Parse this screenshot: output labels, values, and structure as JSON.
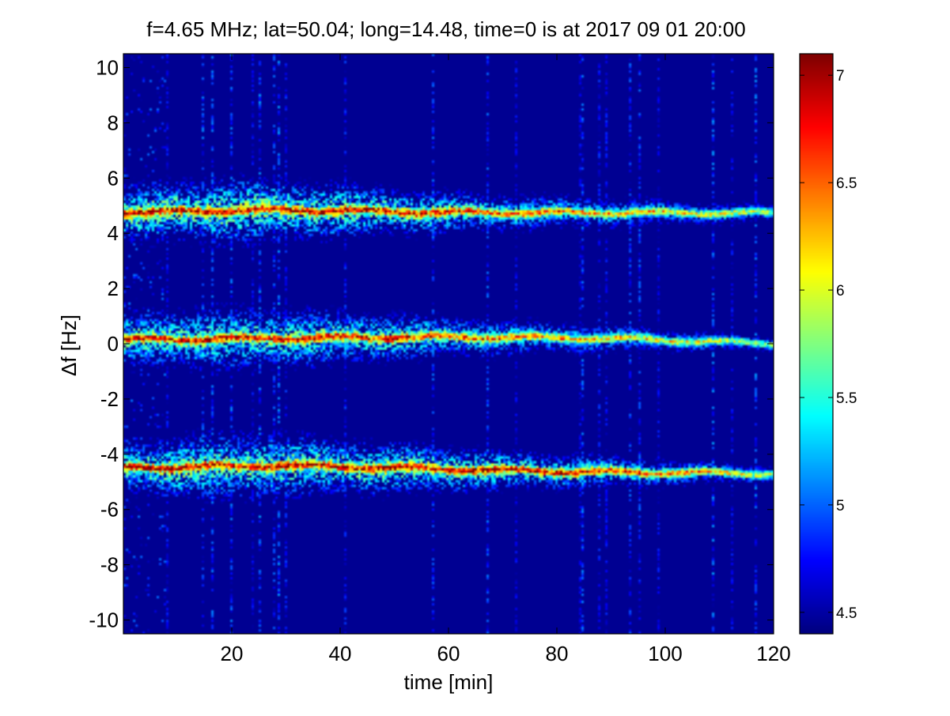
{
  "chart_data": {
    "type": "heatmap",
    "title": "f=4.65 MHz;  lat=50.04; long=14.48, time=0 is at 2017 09 01 20:00",
    "xlabel": "time [min]",
    "ylabel": "Δf [Hz]",
    "xlim": [
      0,
      120
    ],
    "ylim": [
      -10.5,
      10.5
    ],
    "x_ticks": [
      20,
      40,
      60,
      80,
      100,
      120
    ],
    "x_tick_labels": [
      "20",
      "40",
      "60",
      "80",
      "100",
      "120"
    ],
    "y_ticks": [
      10,
      8,
      6,
      4,
      2,
      0,
      -2,
      -4,
      -6,
      -8,
      -10
    ],
    "y_tick_labels": [
      "10",
      "8",
      "6",
      "4",
      "2",
      "0",
      "-2",
      "-4",
      "-6",
      "-8",
      "-10"
    ],
    "colorbar": {
      "range": [
        4.4,
        7.1
      ],
      "colormap": "jet",
      "ticks": [
        4.5,
        5,
        5.5,
        6,
        6.5,
        7
      ],
      "tick_labels": [
        "4.5",
        "5",
        "5.5",
        "6",
        "6.5",
        "7"
      ]
    },
    "background_value": 4.45,
    "bands": [
      {
        "center_hz": [
          [
            0,
            4.75
          ],
          [
            30,
            4.85
          ],
          [
            60,
            4.75
          ],
          [
            90,
            4.75
          ],
          [
            120,
            4.72
          ]
        ],
        "halfwidth_hz": [
          [
            0,
            1.2
          ],
          [
            20,
            1.5
          ],
          [
            60,
            0.9
          ],
          [
            120,
            0.35
          ]
        ],
        "peak_value": [
          [
            0,
            7.0
          ],
          [
            50,
            7.0
          ],
          [
            70,
            6.6
          ],
          [
            120,
            6.0
          ]
        ]
      },
      {
        "center_hz": [
          [
            0,
            0.15
          ],
          [
            30,
            0.2
          ],
          [
            60,
            0.25
          ],
          [
            90,
            0.2
          ],
          [
            120,
            0.0
          ]
        ],
        "halfwidth_hz": [
          [
            0,
            1.2
          ],
          [
            20,
            1.4
          ],
          [
            60,
            0.9
          ],
          [
            120,
            0.3
          ]
        ],
        "peak_value": [
          [
            0,
            6.9
          ],
          [
            50,
            6.9
          ],
          [
            70,
            6.5
          ],
          [
            120,
            5.9
          ]
        ]
      },
      {
        "center_hz": [
          [
            0,
            -4.5
          ],
          [
            30,
            -4.4
          ],
          [
            60,
            -4.55
          ],
          [
            90,
            -4.65
          ],
          [
            120,
            -4.7
          ]
        ],
        "halfwidth_hz": [
          [
            0,
            1.2
          ],
          [
            20,
            1.5
          ],
          [
            60,
            1.0
          ],
          [
            120,
            0.35
          ]
        ],
        "peak_value": [
          [
            0,
            7.0
          ],
          [
            50,
            7.0
          ],
          [
            85,
            6.9
          ],
          [
            120,
            6.0
          ]
        ]
      }
    ],
    "grid": false,
    "legend": "none"
  }
}
